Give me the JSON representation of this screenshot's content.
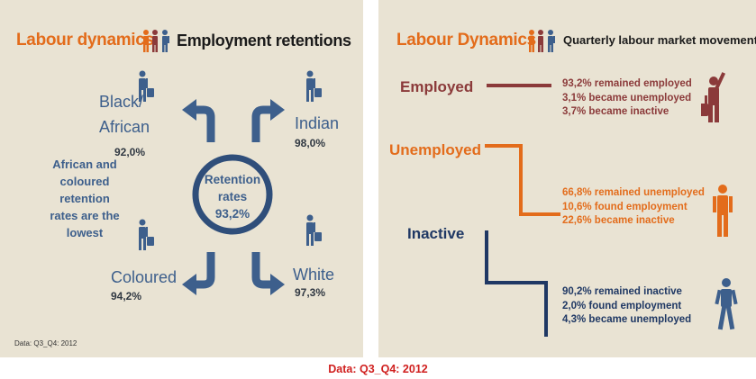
{
  "left": {
    "title_orange": "Labour dynamics",
    "title_black": "Employment retentions",
    "groups": {
      "black_african": {
        "name_line1": "Black/",
        "name_line2": "African",
        "value": "92,0%"
      },
      "indian": {
        "name": "Indian",
        "value": "98,0%"
      },
      "coloured": {
        "name": "Coloured",
        "value": "94,2%"
      },
      "white": {
        "name": "White",
        "value": "97,3%"
      }
    },
    "note_lines": [
      "African and",
      "coloured",
      "retention",
      "rates are the",
      "lowest"
    ],
    "center": {
      "line1": "Retention",
      "line2": "rates",
      "line3": "93,2%"
    },
    "data_source": "Data: Q3_Q4: 2012"
  },
  "right": {
    "title_orange": "Labour Dynamics",
    "title_black": "Quarterly labour market movements",
    "categories": [
      {
        "label": "Employed",
        "color": "#8b3a3a",
        "lines": [
          "93,2% remained employed",
          "3,1% became unemployed",
          "3,7% became inactive"
        ]
      },
      {
        "label": "Unemployed",
        "color": "#e36c1b",
        "lines": [
          "66,8% remained unemployed",
          "10,6% found employment",
          "22,6% became inactive"
        ]
      },
      {
        "label": "Inactive",
        "color": "#1f3864",
        "lines": [
          "90,2% remained inactive",
          "2,0% found employment",
          "4,3% became unemployed"
        ]
      }
    ]
  },
  "footer": "Data: Q3_Q4: 2012",
  "colors": {
    "panel_bg": "#e9e3d3",
    "blue": "#3d5f8c",
    "orange": "#e36c1b",
    "maroon": "#8b3a3a",
    "navy": "#1f3864",
    "footer_red": "#d0201f"
  },
  "icons": [
    "people-group-icon",
    "person-with-suitcase-icon",
    "person-waving-icon",
    "person-standing-icon",
    "person-walking-icon",
    "curved-arrow-icon"
  ]
}
